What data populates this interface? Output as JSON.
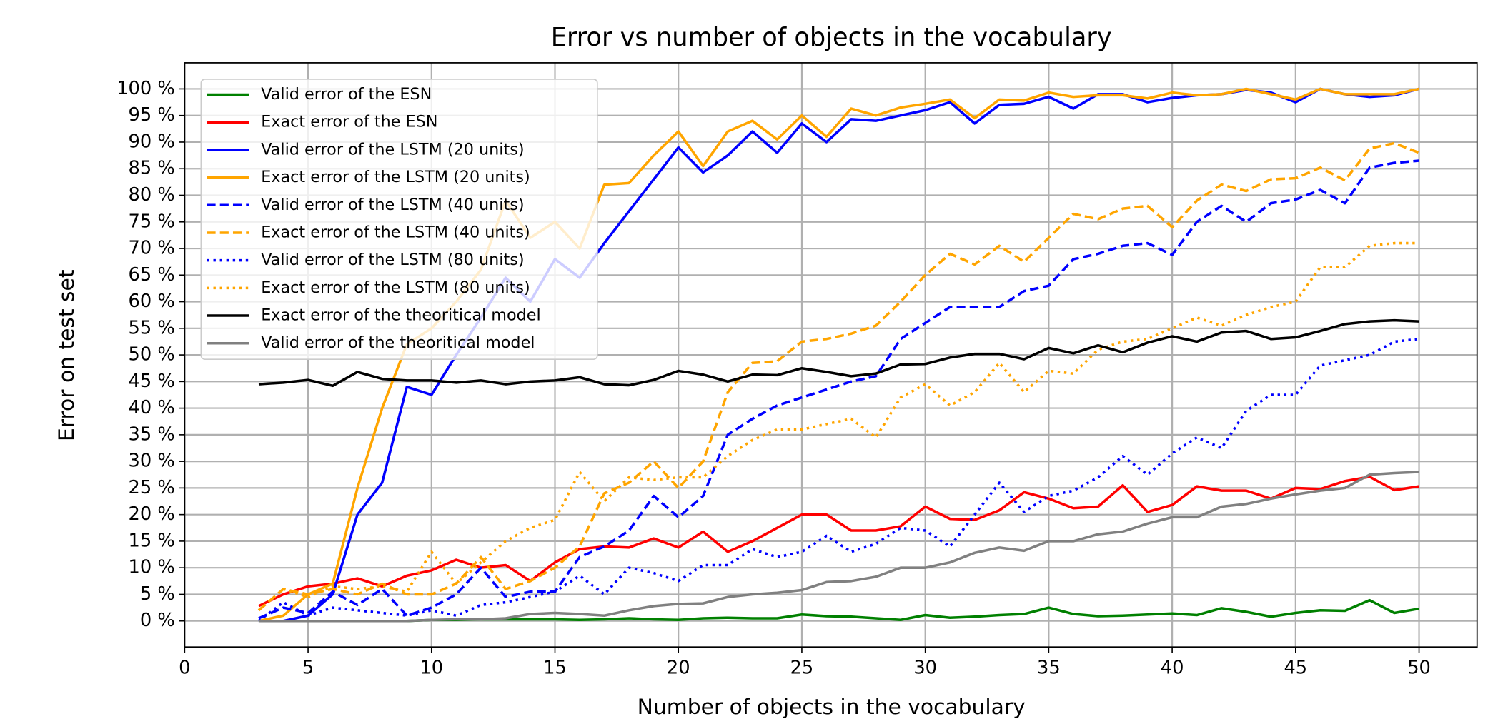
{
  "chart_data": {
    "type": "line",
    "title": "Error vs number of objects in the vocabulary",
    "x_label": "Number of objects in the vocabulary",
    "y_label": "Error on test set",
    "x": [
      3,
      4,
      5,
      6,
      7,
      8,
      9,
      10,
      11,
      12,
      13,
      14,
      15,
      16,
      17,
      18,
      19,
      20,
      21,
      22,
      23,
      24,
      25,
      26,
      27,
      28,
      29,
      30,
      31,
      32,
      33,
      34,
      35,
      36,
      37,
      38,
      39,
      40,
      41,
      42,
      43,
      44,
      45,
      46,
      47,
      48,
      49,
      50
    ],
    "xlim": [
      0,
      52.35
    ],
    "xticks": [
      0,
      5,
      10,
      15,
      20,
      25,
      30,
      35,
      40,
      45,
      50
    ],
    "ylim": [
      -4.9,
      104.9
    ],
    "yticks": [
      {
        "value": 0,
        "label": "0 %"
      },
      {
        "value": 5,
        "label": "5 %"
      },
      {
        "value": 10,
        "label": "10 %"
      },
      {
        "value": 15,
        "label": "15 %"
      },
      {
        "value": 20,
        "label": "20 %"
      },
      {
        "value": 25,
        "label": "25 %"
      },
      {
        "value": 30,
        "label": "30 %"
      },
      {
        "value": 35,
        "label": "35 %"
      },
      {
        "value": 40,
        "label": "40 %"
      },
      {
        "value": 45,
        "label": "45 %"
      },
      {
        "value": 50,
        "label": "50 %"
      },
      {
        "value": 55,
        "label": "55 %"
      },
      {
        "value": 60,
        "label": "60 %"
      },
      {
        "value": 65,
        "label": "65 %"
      },
      {
        "value": 70,
        "label": "70 %"
      },
      {
        "value": 75,
        "label": "75 %"
      },
      {
        "value": 80,
        "label": "80 %"
      },
      {
        "value": 85,
        "label": "85 %"
      },
      {
        "value": 90,
        "label": "90 %"
      },
      {
        "value": 95,
        "label": "95 %"
      },
      {
        "value": 100,
        "label": "100 %"
      }
    ],
    "grid": true,
    "legend": "upper left",
    "series": [
      {
        "name": "Valid error of the ESN",
        "color": "#008000",
        "dash": "solid",
        "values": [
          0,
          0,
          0,
          0,
          0,
          0,
          0,
          0.2,
          0.2,
          0.3,
          0.3,
          0.3,
          0.3,
          0.2,
          0.3,
          0.5,
          0.3,
          0.2,
          0.5,
          0.6,
          0.5,
          0.5,
          1.2,
          0.9,
          0.8,
          0.5,
          0.2,
          1.1,
          0.6,
          0.8,
          1.1,
          1.3,
          2.5,
          1.3,
          0.9,
          1.0,
          1.2,
          1.4,
          1.1,
          2.4,
          1.7,
          0.8,
          1.5,
          2.0,
          1.9,
          3.9,
          1.5,
          2.3
        ]
      },
      {
        "name": "Exact error of the ESN",
        "color": "#ff0000",
        "dash": "solid",
        "values": [
          2.8,
          5,
          6.5,
          7,
          8,
          6.5,
          8.5,
          9.5,
          11.5,
          10,
          10.5,
          7.5,
          11,
          13.5,
          14,
          13.8,
          15.5,
          13.8,
          16.8,
          13,
          15,
          17.5,
          20,
          20,
          17,
          17,
          17.8,
          21.5,
          19.2,
          19,
          20.8,
          24.2,
          23,
          21.2,
          21.5,
          25.5,
          20.5,
          21.8,
          25.3,
          24.5,
          24.5,
          23,
          25,
          24.8,
          26.3,
          27.1,
          24.6,
          25.3
        ]
      },
      {
        "name": "Valid error of the LSTM (20 units)",
        "color": "#0000ff",
        "dash": "solid",
        "values": [
          0,
          0,
          1,
          5,
          20,
          26,
          44,
          42.5,
          50,
          57,
          64.5,
          60,
          68,
          64.5,
          71,
          77,
          83,
          89,
          84.3,
          87.5,
          92,
          88,
          93.5,
          90,
          94.3,
          94,
          95,
          96,
          97.5,
          93.5,
          97,
          97.2,
          98.5,
          96.3,
          99,
          99,
          97.5,
          98.3,
          98.8,
          99,
          99.8,
          99.3,
          97.5,
          100,
          99,
          98.5,
          98.8,
          100
        ]
      },
      {
        "name": "Exact error of the LSTM (20 units)",
        "color": "#ffa500",
        "dash": "solid",
        "values": [
          0,
          1,
          5,
          7,
          25,
          40,
          52,
          55,
          60,
          66,
          79,
          72,
          75,
          70,
          82,
          82.3,
          87.5,
          92,
          85.5,
          92,
          94,
          90.5,
          95,
          91,
          96.3,
          95,
          96.5,
          97.2,
          98,
          94.5,
          98,
          97.8,
          99.3,
          98.5,
          98.8,
          98.8,
          98.2,
          99.3,
          98.8,
          99,
          100,
          99,
          98,
          100,
          99,
          99,
          99,
          100
        ]
      },
      {
        "name": "Valid error of the LSTM (40 units)",
        "color": "#0000ff",
        "dash": "dashed",
        "values": [
          0.5,
          2.5,
          1.5,
          5.5,
          3,
          6,
          1,
          2.5,
          5,
          10,
          4.5,
          5.5,
          5.5,
          12,
          14,
          17,
          23.5,
          19.5,
          23.5,
          35,
          38,
          40.5,
          42,
          43.5,
          45,
          46,
          53,
          56,
          59,
          59,
          59,
          62,
          63,
          68,
          69,
          70.5,
          71,
          68.8,
          75,
          78,
          75,
          78.5,
          79.2,
          81,
          78.5,
          85.2,
          86.1,
          86.5
        ]
      },
      {
        "name": "Exact error of the LSTM (40 units)",
        "color": "#ffa500",
        "dash": "dashed",
        "values": [
          2,
          6,
          5,
          6,
          5,
          7,
          5,
          5,
          7,
          12,
          6,
          7.5,
          10,
          14,
          24,
          26,
          30,
          25,
          30,
          43,
          48.5,
          48.8,
          52.5,
          53,
          54,
          55.5,
          60,
          65,
          69,
          67,
          70.5,
          67.5,
          72,
          76.5,
          75.5,
          77.5,
          78,
          74,
          79,
          82,
          80.8,
          83,
          83.2,
          85.2,
          82.8,
          88.8,
          89.8,
          88
        ]
      },
      {
        "name": "Valid error of the LSTM (80 units)",
        "color": "#0000ff",
        "dash": "dotted",
        "values": [
          0,
          3.5,
          1,
          2.5,
          2,
          1.5,
          1,
          2,
          1,
          3,
          3.5,
          4.5,
          5.5,
          8.5,
          5,
          10,
          9,
          7.5,
          10.5,
          10.5,
          13.5,
          12,
          13,
          16,
          13,
          14.5,
          17.5,
          17,
          14,
          20,
          26,
          20.5,
          23.5,
          24.5,
          27,
          31,
          27.5,
          31.5,
          34.5,
          32.5,
          39.5,
          42.5,
          42.5,
          48,
          49,
          50,
          52.5,
          53
        ]
      },
      {
        "name": "Exact error of the LSTM (80 units)",
        "color": "#ffa500",
        "dash": "dotted",
        "values": [
          2,
          6,
          4.5,
          6.5,
          6,
          6.5,
          5.5,
          13,
          7,
          11,
          15,
          17.5,
          19,
          28,
          22.5,
          27,
          26.5,
          27,
          27,
          31,
          34,
          36,
          36,
          37,
          38,
          34.5,
          42,
          44.5,
          40.5,
          43,
          48.5,
          43,
          47,
          46.5,
          51,
          52.5,
          53,
          55,
          57,
          55.5,
          57.5,
          59,
          60,
          66.5,
          66.5,
          70.5,
          71,
          71
        ]
      },
      {
        "name": "Exact error of the theoritical model",
        "color": "#000000",
        "dash": "solid",
        "values": [
          44.5,
          44.8,
          45.3,
          44.2,
          46.8,
          45.5,
          45.2,
          45.2,
          44.8,
          45.2,
          44.5,
          45,
          45.2,
          45.8,
          44.5,
          44.3,
          45.3,
          47,
          46.3,
          45,
          46.3,
          46.2,
          47.5,
          46.8,
          46,
          46.5,
          48.2,
          48.3,
          49.5,
          50.2,
          50.2,
          49.2,
          51.3,
          50.3,
          51.8,
          50.5,
          52.3,
          53.5,
          52.5,
          54.2,
          54.5,
          53,
          53.3,
          54.5,
          55.8,
          56.3,
          56.5,
          56.3
        ]
      },
      {
        "name": "Valid error of the theoritical model",
        "color": "#808080",
        "dash": "solid",
        "values": [
          0,
          0,
          0,
          0,
          0,
          0,
          0,
          0.2,
          0.3,
          0.3,
          0.5,
          1.3,
          1.5,
          1.3,
          1,
          2,
          2.8,
          3.2,
          3.3,
          4.5,
          5,
          5.3,
          5.8,
          7.3,
          7.5,
          8.3,
          10,
          10,
          11,
          12.8,
          13.8,
          13.2,
          15,
          15,
          16.3,
          16.8,
          18.3,
          19.5,
          19.5,
          21.5,
          22,
          23,
          23.8,
          24.5,
          25,
          27.5,
          27.8,
          28
        ]
      }
    ]
  }
}
